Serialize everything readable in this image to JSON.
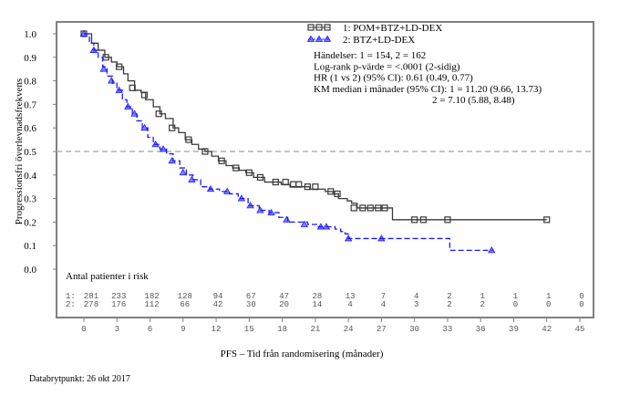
{
  "chart_data": {
    "type": "line",
    "subtype": "kaplan-meier",
    "title": "",
    "xlabel": "PFS – Tid från randomisering (månader)",
    "ylabel": "Progressionsfri överlevnadsfrekvens",
    "xlim": [
      0,
      45
    ],
    "ylim": [
      0.0,
      1.0
    ],
    "xticks": [
      "0",
      "3",
      "6",
      "9",
      "12",
      "15",
      "18",
      "21",
      "24",
      "27",
      "30",
      "33",
      "36",
      "39",
      "42",
      "45"
    ],
    "xtick_values": [
      0,
      3,
      6,
      9,
      12,
      15,
      18,
      21,
      24,
      27,
      30,
      33,
      36,
      39,
      42,
      45
    ],
    "yticks": [
      "0.0",
      "0.1",
      "0.2",
      "0.3",
      "0.4",
      "0.5",
      "0.6",
      "0.7",
      "0.8",
      "0.9",
      "1.0"
    ],
    "ytick_values": [
      0.0,
      0.1,
      0.2,
      0.3,
      0.4,
      0.5,
      0.6,
      0.7,
      0.8,
      0.9,
      1.0
    ],
    "reference_line": {
      "y": 0.5,
      "style": "dashed",
      "color": "#b0b0b0"
    },
    "grid": false,
    "legend": {
      "placement": "top-right",
      "entries": [
        {
          "label": "1: POM+BTZ+LD-DEX",
          "marker": "square",
          "color": "#3a3a3a"
        },
        {
          "label": "2: BTZ+LD-DEX",
          "marker": "triangle",
          "color": "#1a1aff"
        }
      ]
    },
    "annotations": [
      "Händelser: 1 = 154, 2 = 162",
      "Log-rank p-värde = <.0001 (2-sidig)",
      "HR (1 vs 2) (95% CI):  0.61 (0.49, 0.77)",
      "KM median i månader (95% CI): 1 = 11.20 (9.66, 13.73)",
      "2 = 7.10 (5.88, 8.48)"
    ],
    "series": [
      {
        "name": "1: POM+BTZ+LD-DEX",
        "color": "#3a3a3a",
        "line_style": "solid",
        "marker": "square",
        "x": [
          0,
          0.7,
          1.3,
          1.9,
          2.5,
          3.0,
          3.6,
          4.0,
          4.6,
          5.2,
          5.6,
          6.3,
          6.9,
          7.4,
          8.1,
          8.6,
          9.2,
          9.8,
          10.4,
          11.0,
          11.6,
          12.2,
          12.9,
          13.5,
          14.1,
          14.7,
          15.4,
          16.4,
          17.2,
          17.9,
          18.7,
          19.7,
          20.5,
          21.3,
          21.9,
          22.6,
          23.1,
          23.9,
          24.3,
          24.8,
          27.9,
          28.0,
          42.0
        ],
        "y": [
          1.0,
          0.96,
          0.93,
          0.9,
          0.88,
          0.86,
          0.83,
          0.8,
          0.76,
          0.75,
          0.72,
          0.69,
          0.66,
          0.64,
          0.6,
          0.58,
          0.55,
          0.53,
          0.51,
          0.5,
          0.48,
          0.46,
          0.44,
          0.43,
          0.42,
          0.41,
          0.39,
          0.37,
          0.37,
          0.36,
          0.35,
          0.35,
          0.34,
          0.34,
          0.33,
          0.32,
          0.3,
          0.29,
          0.28,
          0.26,
          0.26,
          0.21,
          0.21
        ],
        "censor_x": [
          2.0,
          3.2,
          4.4,
          5.5,
          6.8,
          8.0,
          9.5,
          11.0,
          12.5,
          13.8,
          15.0,
          16.0,
          17.4,
          18.3,
          19.0,
          19.5,
          20.3,
          21.0,
          22.4,
          23.0,
          24.5,
          25.3,
          26.0,
          26.7,
          27.3,
          30.0,
          30.8,
          33.0,
          42.0
        ],
        "censor_y": [
          0.9,
          0.86,
          0.77,
          0.74,
          0.66,
          0.6,
          0.55,
          0.5,
          0.46,
          0.43,
          0.41,
          0.39,
          0.37,
          0.37,
          0.36,
          0.36,
          0.35,
          0.35,
          0.33,
          0.32,
          0.26,
          0.26,
          0.26,
          0.26,
          0.26,
          0.21,
          0.21,
          0.21,
          0.21
        ]
      },
      {
        "name": "2: BTZ+LD-DEX",
        "color": "#1a1aff",
        "line_style": "dashed",
        "marker": "triangle",
        "x": [
          0,
          0.5,
          0.9,
          1.3,
          1.7,
          2.1,
          2.6,
          3.0,
          3.5,
          3.9,
          4.4,
          4.8,
          5.3,
          5.8,
          6.3,
          6.9,
          7.5,
          8.1,
          8.7,
          9.3,
          9.9,
          10.6,
          11.4,
          12.3,
          13.2,
          14.0,
          14.9,
          15.9,
          16.8,
          17.7,
          18.5,
          19.4,
          20.3,
          21.2,
          22.1,
          22.8,
          23.3,
          23.7,
          24.0,
          33.1,
          33.2,
          37.1
        ],
        "y": [
          1.0,
          0.96,
          0.93,
          0.9,
          0.86,
          0.82,
          0.79,
          0.76,
          0.72,
          0.69,
          0.66,
          0.63,
          0.6,
          0.56,
          0.53,
          0.51,
          0.49,
          0.46,
          0.43,
          0.4,
          0.38,
          0.35,
          0.34,
          0.33,
          0.32,
          0.3,
          0.27,
          0.25,
          0.24,
          0.22,
          0.2,
          0.2,
          0.19,
          0.18,
          0.18,
          0.17,
          0.16,
          0.15,
          0.13,
          0.13,
          0.08,
          0.08
        ],
        "censor_x": [
          0.9,
          1.8,
          2.5,
          3.2,
          4.0,
          4.6,
          5.5,
          6.5,
          7.2,
          8.0,
          9.0,
          9.8,
          11.5,
          13.0,
          14.3,
          15.1,
          16.0,
          17.0,
          18.4,
          20.0,
          21.5,
          22.0,
          24.0,
          27.0,
          37.0
        ],
        "censor_y": [
          0.93,
          0.85,
          0.8,
          0.76,
          0.69,
          0.66,
          0.6,
          0.53,
          0.51,
          0.46,
          0.41,
          0.38,
          0.34,
          0.33,
          0.3,
          0.27,
          0.25,
          0.24,
          0.21,
          0.19,
          0.18,
          0.18,
          0.13,
          0.13,
          0.08
        ]
      }
    ],
    "risk_table": {
      "title": "Antal patienter i risk",
      "times": [
        0,
        3,
        6,
        9,
        12,
        15,
        18,
        21,
        24,
        27,
        30,
        33,
        36,
        39,
        42,
        45
      ],
      "rows": [
        {
          "label": "1:",
          "values": [
            281,
            233,
            182,
            128,
            94,
            67,
            47,
            28,
            13,
            7,
            4,
            2,
            1,
            1,
            1,
            0
          ]
        },
        {
          "label": "2:",
          "values": [
            278,
            176,
            112,
            66,
            42,
            30,
            20,
            14,
            4,
            4,
            3,
            2,
            2,
            0,
            0,
            0
          ]
        }
      ]
    }
  },
  "footer": {
    "data_cutoff": "Databrytpunkt: 26 okt 2017"
  }
}
